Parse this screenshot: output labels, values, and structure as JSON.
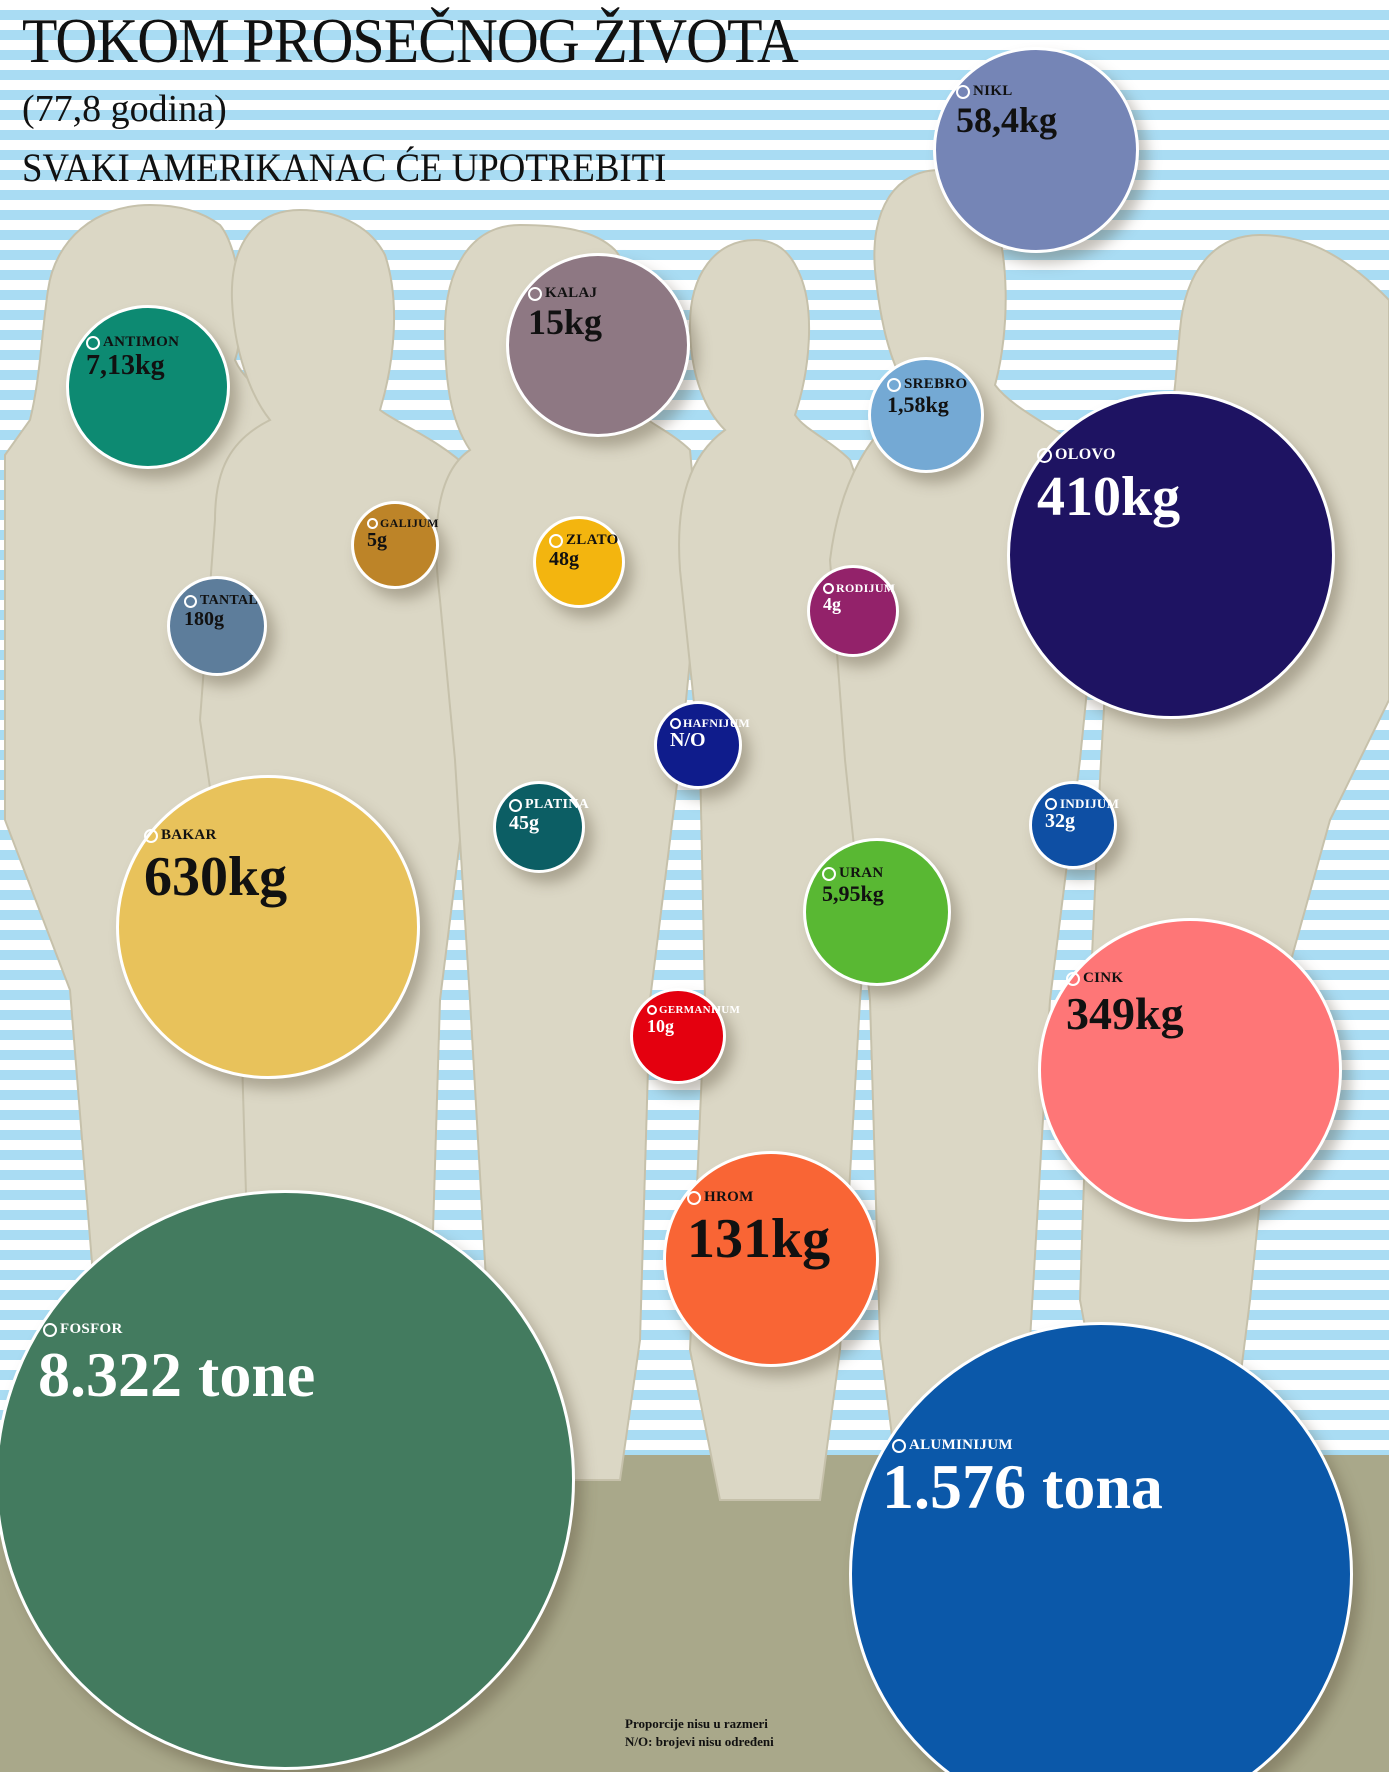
{
  "header": {
    "title": "TOKOM PROSEČNOG ŽIVOTA",
    "subtitle": "(77,8 godina)",
    "tagline": "SVAKI AMERIKANAC ĆE UPOTREBITI"
  },
  "elements": [
    {
      "name": "NIKL",
      "value": "58,4kg",
      "color": "#7585b6",
      "text_color": "#111111"
    },
    {
      "name": "KALAJ",
      "value": "15kg",
      "color": "#8e7883",
      "text_color": "#111111"
    },
    {
      "name": "ANTIMON",
      "value": "7,13kg",
      "color": "#0d8a72",
      "text_color": "#111111"
    },
    {
      "name": "SREBRO",
      "value": "1,58kg",
      "color": "#74a9d4",
      "text_color": "#111111"
    },
    {
      "name": "OLOVO",
      "value": "410kg",
      "color": "#1e1362",
      "text_color": "#ffffff"
    },
    {
      "name": "GALIJUM",
      "value": "5g",
      "color": "#bd8428",
      "text_color": "#111111"
    },
    {
      "name": "ZLATO",
      "value": "48g",
      "color": "#f3b50f",
      "text_color": "#111111"
    },
    {
      "name": "TANTAL",
      "value": "180g",
      "color": "#5d7d9b",
      "text_color": "#111111"
    },
    {
      "name": "RODIJUM",
      "value": "4g",
      "color": "#93226a",
      "text_color": "#ffffff"
    },
    {
      "name": "HAFNIJUM",
      "value": "N/O",
      "color": "#0f1c8c",
      "text_color": "#ffffff"
    },
    {
      "name": "PLATINA",
      "value": "45g",
      "color": "#0c5e64",
      "text_color": "#ffffff"
    },
    {
      "name": "INDIJUM",
      "value": "32g",
      "color": "#0e4fa4",
      "text_color": "#ffffff"
    },
    {
      "name": "BAKAR",
      "value": "630kg",
      "color": "#e8c25b",
      "text_color": "#111111"
    },
    {
      "name": "URAN",
      "value": "5,95kg",
      "color": "#59b833",
      "text_color": "#111111"
    },
    {
      "name": "GERMANIJUM",
      "value": "10g",
      "color": "#e4000f",
      "text_color": "#ffffff"
    },
    {
      "name": "CINK",
      "value": "349kg",
      "color": "#fe7677",
      "text_color": "#111111"
    },
    {
      "name": "HROM",
      "value": "131kg",
      "color": "#f96535",
      "text_color": "#111111"
    },
    {
      "name": "FOSFOR",
      "value": "8.322 tone",
      "color": "#437b5f",
      "text_color": "#ffffff"
    },
    {
      "name": "ALUMINIJUM",
      "value": "1.576 tona",
      "color": "#0b58a9",
      "text_color": "#ffffff"
    }
  ],
  "footnotes": {
    "scale_note": "Proporcije nisu u razmeri",
    "na_note": "N/O: brojevi nisu određeni"
  },
  "colors": {
    "stripe_white": "#ffffff",
    "stripe_blue": "#a9dcf3",
    "silhouette": "#dbd7c5",
    "silhouette_edge": "#c6c1ab",
    "floor": "#a9a88a"
  }
}
